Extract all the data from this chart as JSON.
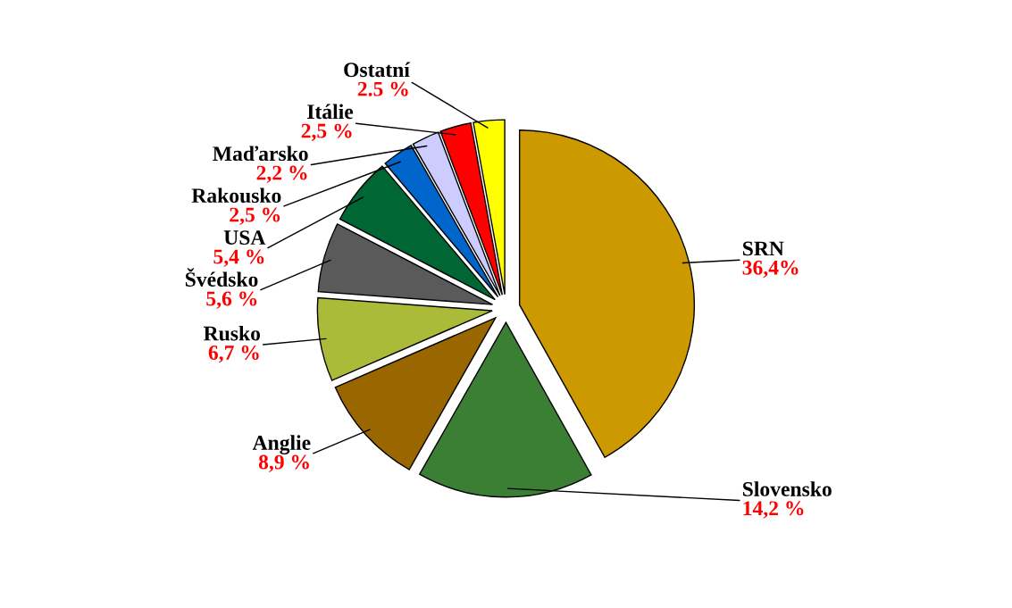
{
  "chart_data": {
    "type": "pie",
    "categories": [
      "SRN",
      "Slovensko",
      "Anglie",
      "Rusko",
      "Švédsko",
      "USA",
      "Rakousko",
      "Maďarsko",
      "Itálie",
      "Ostatní"
    ],
    "values": [
      36.4,
      14.2,
      8.9,
      6.7,
      5.6,
      5.4,
      2.5,
      2.2,
      2.5,
      2.5
    ],
    "value_labels": [
      "36,4%",
      "14,2 %",
      "8,9 %",
      "6,7 %",
      "5,6 %",
      "5,4 %",
      "2,5 %",
      "2,2 %",
      "2,5 %",
      "2.5 %"
    ],
    "colors": [
      "#cc9900",
      "#3a7f33",
      "#996600",
      "#aabb3a",
      "#5a5a5a",
      "#006633",
      "#0066cc",
      "#ccccff",
      "#ff0000",
      "#ffff00"
    ],
    "legend": false
  }
}
